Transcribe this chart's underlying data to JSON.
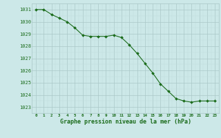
{
  "x": [
    0,
    1,
    2,
    3,
    4,
    5,
    6,
    7,
    8,
    9,
    10,
    11,
    12,
    13,
    14,
    15,
    16,
    17,
    18,
    19,
    20,
    21,
    22,
    23
  ],
  "y": [
    1031.0,
    1031.0,
    1030.6,
    1030.3,
    1030.0,
    1029.5,
    1028.9,
    1028.8,
    1028.8,
    1028.8,
    1028.9,
    1028.7,
    1028.1,
    1027.4,
    1026.6,
    1025.8,
    1024.9,
    1024.3,
    1023.7,
    1023.5,
    1023.4,
    1023.5,
    1023.5,
    1023.5
  ],
  "xlabel": "Graphe pression niveau de la mer (hPa)",
  "ylim": [
    1022.5,
    1031.5
  ],
  "xlim": [
    -0.5,
    23.5
  ],
  "yticks": [
    1023,
    1024,
    1025,
    1026,
    1027,
    1028,
    1029,
    1030,
    1031
  ],
  "xticks": [
    0,
    1,
    2,
    3,
    4,
    5,
    6,
    7,
    8,
    9,
    10,
    11,
    12,
    13,
    14,
    15,
    16,
    17,
    18,
    19,
    20,
    21,
    22,
    23
  ],
  "line_color": "#1a6b1a",
  "marker_color": "#1a6b1a",
  "bg_color": "#cce8e8",
  "grid_color_major": "#aac8c8",
  "grid_color_minor": "#c0dcdc",
  "axis_label_color": "#1a6b1a",
  "tick_label_color": "#1a6b1a"
}
